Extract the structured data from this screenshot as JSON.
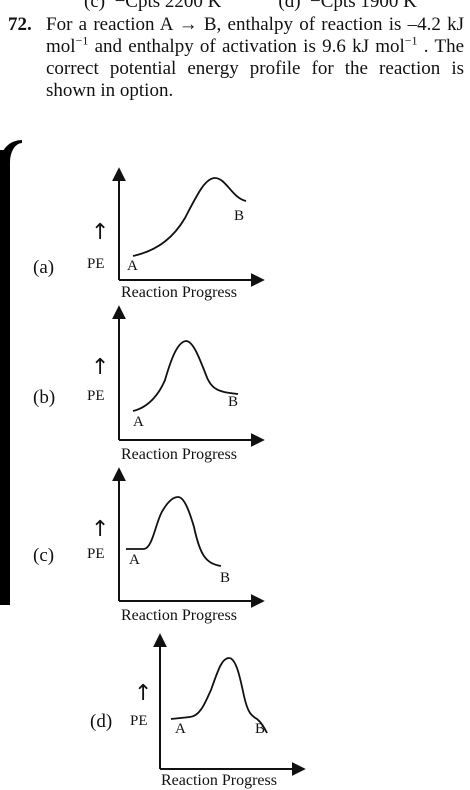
{
  "previous_options_line": "(c)  −Cpts 2200 K            (d)  −Cpts 1900 K",
  "question": {
    "number": "72.",
    "text_parts": [
      "For a reaction A → B, enthalpy of reaction is –4.2 kJ mol",
      "−1",
      " and enthalpy of activation is 9.6 kJ mol",
      "−1",
      " . The correct potential energy profile for the reaction is shown in option."
    ]
  },
  "options": [
    {
      "label": "(a)",
      "y_axis_label": "PE",
      "arrow": "↑",
      "x_axis_label": "Reaction Progress",
      "start_label": "A",
      "end_label": "B"
    },
    {
      "label": "(b)",
      "y_axis_label": "PE",
      "arrow": "↑",
      "x_axis_label": "Reaction Progress",
      "start_label": "A",
      "end_label": "B"
    },
    {
      "label": "(c)",
      "y_axis_label": "PE",
      "arrow": "↑",
      "x_axis_label": "Reaction Progress",
      "start_label": "A",
      "end_label": "B"
    },
    {
      "label": "(d)",
      "y_axis_label": "PE",
      "arrow": "↑",
      "x_axis_label": "Reaction Progress",
      "start_label": "A",
      "end_label": "B"
    }
  ],
  "colors": {
    "ink": "#111111",
    "background": "#ffffff"
  }
}
